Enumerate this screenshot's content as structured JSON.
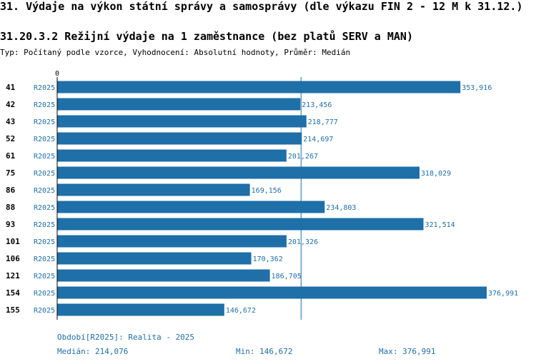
{
  "header": {
    "title": "31. Výdaje na výkon státní správy a samosprávy (dle výkazu FIN 2 - 12 M k 31.12.)",
    "subtitle": "31.20.3.2 Režijní výdaje na 1 zaměstnance (bez platů SERV a MAN)",
    "type_line": "Typ: Počítaný podle vzorce, Vyhodnocení: Absolutní hodnoty, Průměr: Medián"
  },
  "chart_data": {
    "type": "bar",
    "orientation": "horizontal",
    "axis_zero_label": "0",
    "xlim": [
      0,
      376991
    ],
    "categories": [
      "41",
      "42",
      "43",
      "52",
      "61",
      "75",
      "86",
      "88",
      "93",
      "101",
      "106",
      "121",
      "154",
      "155"
    ],
    "series": [
      {
        "name": "R2025",
        "labels": [
          "R2025",
          "R2025",
          "R2025",
          "R2025",
          "R2025",
          "R2025",
          "R2025",
          "R2025",
          "R2025",
          "R2025",
          "R2025",
          "R2025",
          "R2025",
          "R2025"
        ],
        "values": [
          353916,
          213456,
          218777,
          214697,
          201267,
          318029,
          169156,
          234803,
          321514,
          201326,
          170362,
          186705,
          376991,
          146672
        ],
        "value_labels": [
          "353,916",
          "213,456",
          "218,777",
          "214,697",
          "201,267",
          "318,029",
          "169,156",
          "234,803",
          "321,514",
          "201,326",
          "170,362",
          "186,705",
          "376,991",
          "146,672"
        ]
      }
    ],
    "median_line": 214076,
    "colors": {
      "bar": "#1f6fa8",
      "label": "#1f6fa8",
      "axis": "#000000",
      "median": "#1f6fa8"
    }
  },
  "footer": {
    "period": "Období[R2025]: Realita - 2025",
    "median": "Medián: 214,076",
    "min": "Min: 146,672",
    "max": "Max: 376,991"
  }
}
